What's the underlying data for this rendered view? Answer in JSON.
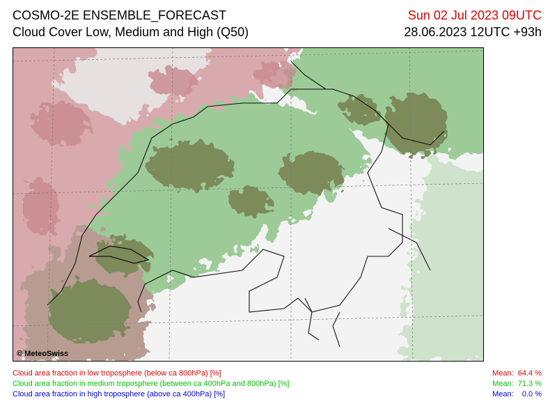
{
  "header": {
    "title": "COSMO-2E ENSEMBLE_FORECAST",
    "subtitle": "Cloud Cover Low, Medium and High (Q50)",
    "valid_time": "Sun 02 Jul 2023 09UTC",
    "run_time": "28.06.2023 12UTC +93h"
  },
  "map": {
    "copyright": "© MeteoSwiss"
  },
  "legend": {
    "items": [
      {
        "label": "Cloud area fraction in low troposphere (below ca 800hPa) [%]",
        "mean": "Mean:  64.4 %"
      },
      {
        "label": "Cloud area fraction in medium troposphere (between ca 400hPa and 800hPa) [%]",
        "mean": "Mean:  71.3 %"
      },
      {
        "label": "Cloud area fraction in high troposphere (above ca 400hPa) [%]",
        "mean": "Mean:    0.0 %"
      }
    ]
  }
}
